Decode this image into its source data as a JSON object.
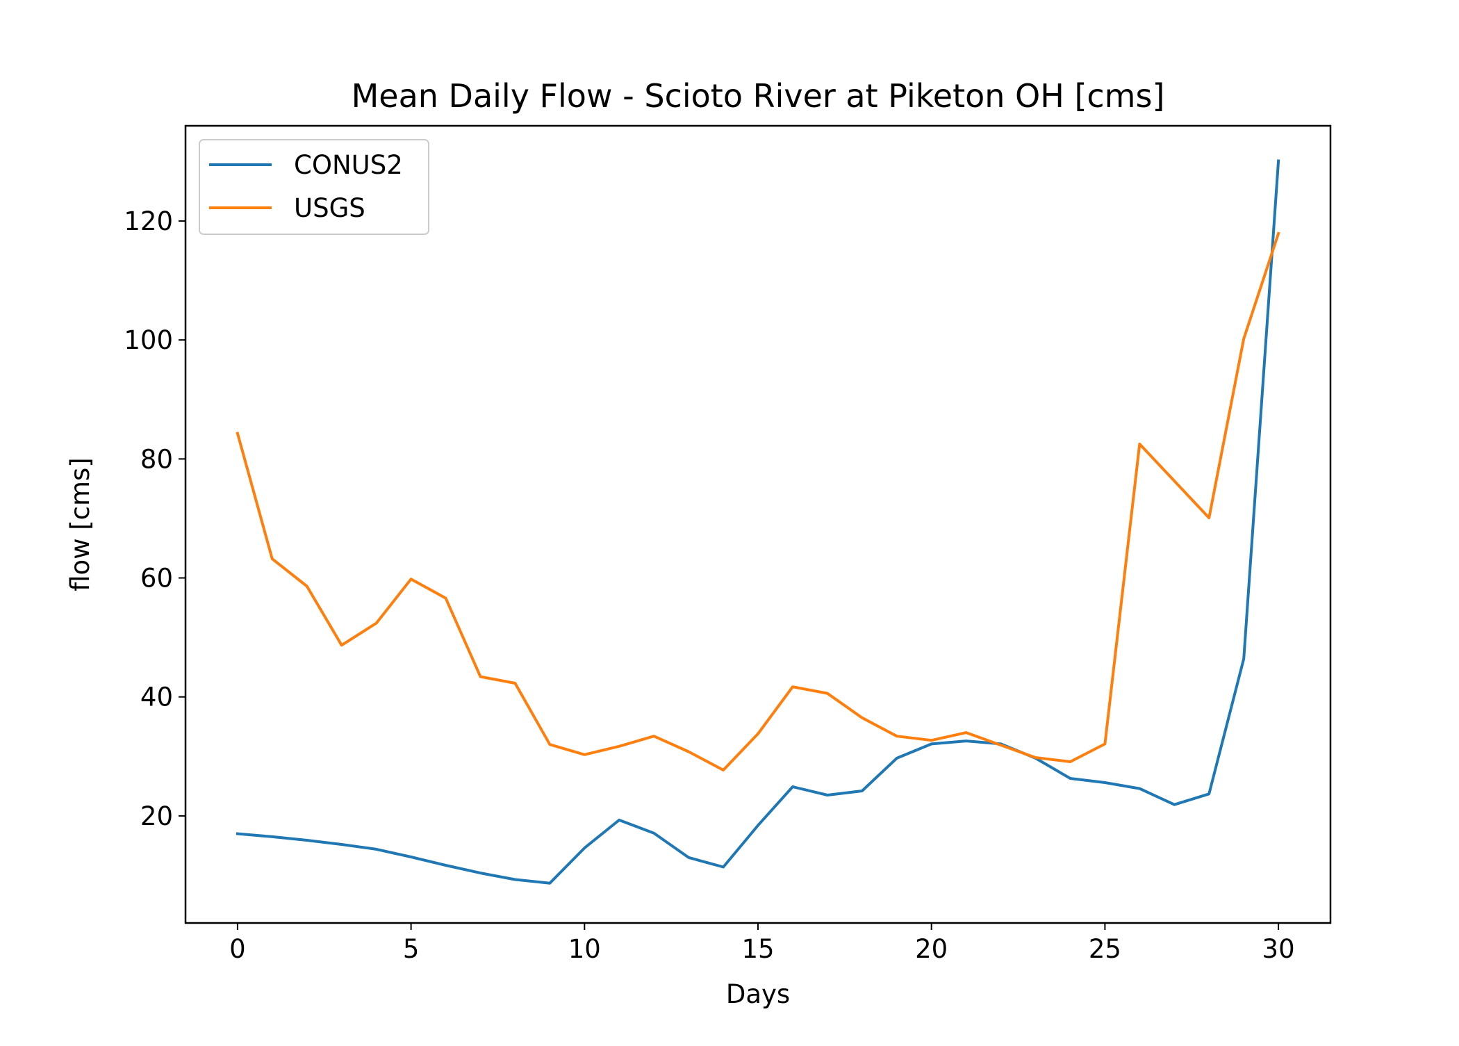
{
  "chart_data": {
    "type": "line",
    "title": "Mean Daily Flow - Scioto River at Piketon OH [cms]",
    "xlabel": "Days",
    "ylabel": "flow [cms]",
    "xlim": [
      -1.5,
      31.5
    ],
    "ylim": [
      2,
      136
    ],
    "xticks": [
      0,
      5,
      10,
      15,
      20,
      25,
      30
    ],
    "yticks": [
      20,
      40,
      60,
      80,
      100,
      120
    ],
    "grid": false,
    "legend_position": "top-left",
    "x": [
      0,
      1,
      2,
      3,
      4,
      5,
      6,
      7,
      8,
      9,
      10,
      11,
      12,
      13,
      14,
      15,
      16,
      17,
      18,
      19,
      20,
      21,
      22,
      23,
      24,
      25,
      26,
      27,
      28,
      29,
      30
    ],
    "series": [
      {
        "name": "CONUS2",
        "color": "#1f77b4",
        "values": [
          17.0,
          16.5,
          15.9,
          15.2,
          14.4,
          13.1,
          11.7,
          10.4,
          9.3,
          8.7,
          14.6,
          19.3,
          17.1,
          13.0,
          11.4,
          18.4,
          24.9,
          23.5,
          24.2,
          29.7,
          32.1,
          32.6,
          32.1,
          29.7,
          26.3,
          25.6,
          24.6,
          21.9,
          23.7,
          46.4,
          130.1
        ]
      },
      {
        "name": "USGS",
        "color": "#ff7f0e",
        "values": [
          84.3,
          63.2,
          58.6,
          48.7,
          52.4,
          59.8,
          56.6,
          43.4,
          42.3,
          32.0,
          30.3,
          31.7,
          33.4,
          30.8,
          27.7,
          33.8,
          41.7,
          40.6,
          36.5,
          33.4,
          32.7,
          34.0,
          31.9,
          29.8,
          29.1,
          32.1,
          82.5,
          76.3,
          70.1,
          100.2,
          117.9
        ]
      }
    ]
  }
}
